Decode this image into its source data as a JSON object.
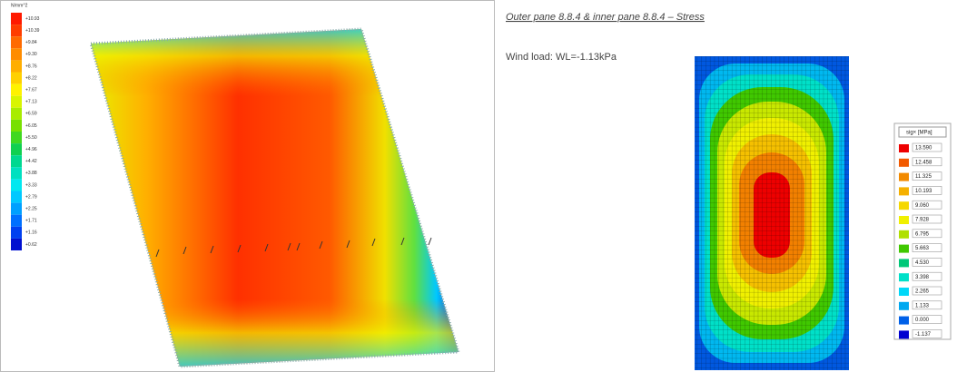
{
  "left_legend": {
    "unit": "N/mm^2",
    "items": [
      {
        "label": "+10.93",
        "color": "#ff1a00"
      },
      {
        "label": "+10.39",
        "color": "#ff3d00"
      },
      {
        "label": "+9.84",
        "color": "#ff6a00"
      },
      {
        "label": "+9.30",
        "color": "#ff8c00"
      },
      {
        "label": "+8.76",
        "color": "#ffae00"
      },
      {
        "label": "+8.22",
        "color": "#ffd000"
      },
      {
        "label": "+7.67",
        "color": "#fff200"
      },
      {
        "label": "+7.13",
        "color": "#d8f500"
      },
      {
        "label": "+6.59",
        "color": "#a8ec00"
      },
      {
        "label": "+6.05",
        "color": "#78e000"
      },
      {
        "label": "+5.50",
        "color": "#40d820"
      },
      {
        "label": "+4.96",
        "color": "#10d050"
      },
      {
        "label": "+4.42",
        "color": "#00d890"
      },
      {
        "label": "+3.88",
        "color": "#00e0c0"
      },
      {
        "label": "+3.33",
        "color": "#00e8f0"
      },
      {
        "label": "+2.79",
        "color": "#00c8ff"
      },
      {
        "label": "+2.25",
        "color": "#00a0ff"
      },
      {
        "label": "+1.71",
        "color": "#0070ff"
      },
      {
        "label": "+1.16",
        "color": "#0040f0"
      },
      {
        "label": "+0.62",
        "color": "#0010d0"
      }
    ]
  },
  "title": "Outer pane 8.8.4 & inner pane 8.8.4 – Stress",
  "wind_load": "Wind load: WL=-1.13kPa",
  "right_legend": {
    "unit": "sig× [MPa]",
    "items": [
      {
        "label": "13.590",
        "color": "#ee0000"
      },
      {
        "label": "12.458",
        "color": "#f25a00"
      },
      {
        "label": "11.325",
        "color": "#f28a00"
      },
      {
        "label": "10.193",
        "color": "#f5b000"
      },
      {
        "label": "9.060",
        "color": "#f5d800"
      },
      {
        "label": "7.928",
        "color": "#f0f000"
      },
      {
        "label": "6.795",
        "color": "#b0e000"
      },
      {
        "label": "5.663",
        "color": "#40c800"
      },
      {
        "label": "4.530",
        "color": "#00c878"
      },
      {
        "label": "3.398",
        "color": "#00e0c8"
      },
      {
        "label": "2.265",
        "color": "#00d8f8"
      },
      {
        "label": "1.133",
        "color": "#00a8f0"
      },
      {
        "label": "0.000",
        "color": "#0060e8"
      },
      {
        "label": "-1.137",
        "color": "#0000d0"
      }
    ]
  }
}
